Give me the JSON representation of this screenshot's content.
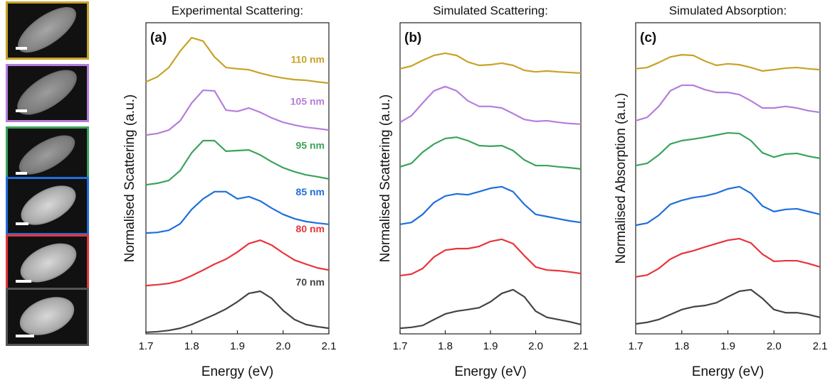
{
  "chart_data": [
    {
      "type": "line",
      "title": "Experimental Scattering:",
      "panel_label": "(a)",
      "xlabel": "Energy (eV)",
      "ylabel": "Normalised Scattering (a.u.)",
      "x": [
        1.7,
        1.725,
        1.75,
        1.775,
        1.8,
        1.825,
        1.85,
        1.875,
        1.9,
        1.925,
        1.95,
        1.975,
        2.0,
        2.025,
        2.05,
        2.075,
        2.1
      ],
      "xlim": [
        1.7,
        2.1
      ],
      "xticks": [
        1.7,
        1.8,
        1.9,
        {
          "value": 2,
          "label": "2.0"
        },
        2.1
      ],
      "ylim": [
        0,
        10
      ],
      "series": [
        {
          "name": "110 nm",
          "color": "#c9a227",
          "values": [
            8.1,
            8.26,
            8.56,
            9.09,
            9.52,
            9.41,
            8.9,
            8.56,
            8.52,
            8.49,
            8.38,
            8.29,
            8.22,
            8.17,
            8.15,
            8.1,
            8.06
          ]
        },
        {
          "name": "105 nm",
          "color": "#b57edc",
          "values": [
            6.39,
            6.44,
            6.55,
            6.85,
            7.42,
            7.83,
            7.81,
            7.19,
            7.15,
            7.26,
            7.12,
            6.94,
            6.8,
            6.71,
            6.64,
            6.6,
            6.55
          ]
        },
        {
          "name": "95 nm",
          "color": "#3aa35c",
          "values": [
            4.79,
            4.84,
            4.93,
            5.25,
            5.82,
            6.21,
            6.21,
            5.87,
            5.89,
            5.91,
            5.75,
            5.53,
            5.34,
            5.21,
            5.11,
            5.05,
            4.98
          ]
        },
        {
          "name": "85 nm",
          "color": "#1f6fdc",
          "values": [
            3.24,
            3.26,
            3.33,
            3.54,
            4.0,
            4.34,
            4.57,
            4.57,
            4.34,
            4.41,
            4.27,
            4.04,
            3.84,
            3.7,
            3.61,
            3.56,
            3.52
          ]
        },
        {
          "name": "80 nm",
          "color": "#e8343a",
          "values": [
            1.55,
            1.58,
            1.62,
            1.71,
            1.87,
            2.05,
            2.24,
            2.4,
            2.63,
            2.9,
            3.01,
            2.85,
            2.6,
            2.37,
            2.24,
            2.12,
            2.05
          ]
        },
        {
          "name": "70 nm",
          "color": "#444444",
          "values": [
            0.05,
            0.07,
            0.11,
            0.18,
            0.3,
            0.46,
            0.62,
            0.8,
            1.03,
            1.3,
            1.37,
            1.14,
            0.75,
            0.46,
            0.3,
            0.23,
            0.18
          ]
        }
      ]
    },
    {
      "type": "line",
      "title": "Simulated Scattering:",
      "panel_label": "(b)",
      "xlabel": "Energy (eV)",
      "ylabel": "Normalised Scattering (a.u.)",
      "x": [
        1.7,
        1.725,
        1.75,
        1.775,
        1.8,
        1.825,
        1.85,
        1.875,
        1.9,
        1.925,
        1.95,
        1.975,
        2.0,
        2.025,
        2.05,
        2.075,
        2.1
      ],
      "xlim": [
        1.7,
        2.1
      ],
      "xticks": [
        1.7,
        1.8,
        1.9,
        {
          "value": 2,
          "label": "2.0"
        },
        2.1
      ],
      "ylim": [
        0,
        10
      ],
      "series": [
        {
          "color": "#c9a227",
          "values": [
            8.52,
            8.61,
            8.79,
            8.95,
            9.02,
            8.95,
            8.74,
            8.63,
            8.65,
            8.7,
            8.63,
            8.47,
            8.42,
            8.45,
            8.42,
            8.4,
            8.38
          ]
        },
        {
          "color": "#b57edc",
          "values": [
            6.8,
            7.01,
            7.42,
            7.81,
            7.95,
            7.81,
            7.49,
            7.31,
            7.31,
            7.26,
            7.08,
            6.89,
            6.83,
            6.85,
            6.8,
            6.76,
            6.74
          ]
        },
        {
          "color": "#3aa35c",
          "values": [
            5.37,
            5.48,
            5.84,
            6.1,
            6.28,
            6.32,
            6.21,
            6.05,
            6.03,
            6.05,
            5.89,
            5.59,
            5.41,
            5.41,
            5.37,
            5.34,
            5.3
          ]
        },
        {
          "color": "#1f6fdc",
          "values": [
            3.52,
            3.58,
            3.84,
            4.22,
            4.43,
            4.5,
            4.47,
            4.57,
            4.68,
            4.73,
            4.57,
            4.16,
            3.84,
            3.77,
            3.7,
            3.63,
            3.58
          ]
        },
        {
          "color": "#e8343a",
          "values": [
            1.87,
            1.92,
            2.1,
            2.47,
            2.69,
            2.74,
            2.74,
            2.81,
            2.97,
            3.04,
            2.9,
            2.51,
            2.15,
            2.05,
            2.03,
            1.99,
            1.94
          ]
        },
        {
          "color": "#444444",
          "values": [
            0.18,
            0.21,
            0.27,
            0.46,
            0.64,
            0.73,
            0.78,
            0.84,
            1.03,
            1.3,
            1.42,
            1.19,
            0.73,
            0.53,
            0.46,
            0.39,
            0.3
          ]
        }
      ]
    },
    {
      "type": "line",
      "title": "Simulated Absorption:",
      "panel_label": "(c)",
      "xlabel": "Energy (eV)",
      "ylabel": "Normalised Absorption (a.u.)",
      "x": [
        1.7,
        1.725,
        1.75,
        1.775,
        1.8,
        1.825,
        1.85,
        1.875,
        1.9,
        1.925,
        1.95,
        1.975,
        2.0,
        2.025,
        2.05,
        2.075,
        2.1
      ],
      "xlim": [
        1.7,
        2.1
      ],
      "xticks": [
        1.7,
        1.8,
        1.9,
        {
          "value": 2,
          "label": "2.0"
        },
        2.1
      ],
      "ylim": [
        0,
        10
      ],
      "series": [
        {
          "color": "#c9a227",
          "values": [
            8.52,
            8.56,
            8.72,
            8.9,
            8.97,
            8.95,
            8.77,
            8.63,
            8.68,
            8.65,
            8.56,
            8.45,
            8.49,
            8.54,
            8.56,
            8.52,
            8.49
          ]
        },
        {
          "color": "#b57edc",
          "values": [
            6.85,
            6.96,
            7.31,
            7.81,
            7.99,
            7.99,
            7.85,
            7.76,
            7.76,
            7.69,
            7.49,
            7.26,
            7.26,
            7.31,
            7.26,
            7.17,
            7.12
          ]
        },
        {
          "color": "#3aa35c",
          "values": [
            5.41,
            5.48,
            5.75,
            6.1,
            6.21,
            6.26,
            6.32,
            6.39,
            6.46,
            6.44,
            6.21,
            5.82,
            5.68,
            5.78,
            5.8,
            5.71,
            5.64
          ]
        },
        {
          "color": "#1f6fdc",
          "values": [
            3.49,
            3.56,
            3.81,
            4.16,
            4.29,
            4.38,
            4.43,
            4.52,
            4.66,
            4.73,
            4.52,
            4.11,
            3.93,
            4.0,
            4.02,
            3.93,
            3.84
          ]
        },
        {
          "color": "#e8343a",
          "values": [
            1.83,
            1.89,
            2.1,
            2.4,
            2.58,
            2.67,
            2.79,
            2.9,
            3.01,
            3.06,
            2.92,
            2.56,
            2.33,
            2.35,
            2.35,
            2.26,
            2.15
          ]
        },
        {
          "color": "#444444",
          "values": [
            0.32,
            0.37,
            0.46,
            0.62,
            0.78,
            0.87,
            0.91,
            1.0,
            1.19,
            1.37,
            1.42,
            1.14,
            0.78,
            0.68,
            0.68,
            0.62,
            0.53
          ]
        }
      ]
    }
  ]
}
